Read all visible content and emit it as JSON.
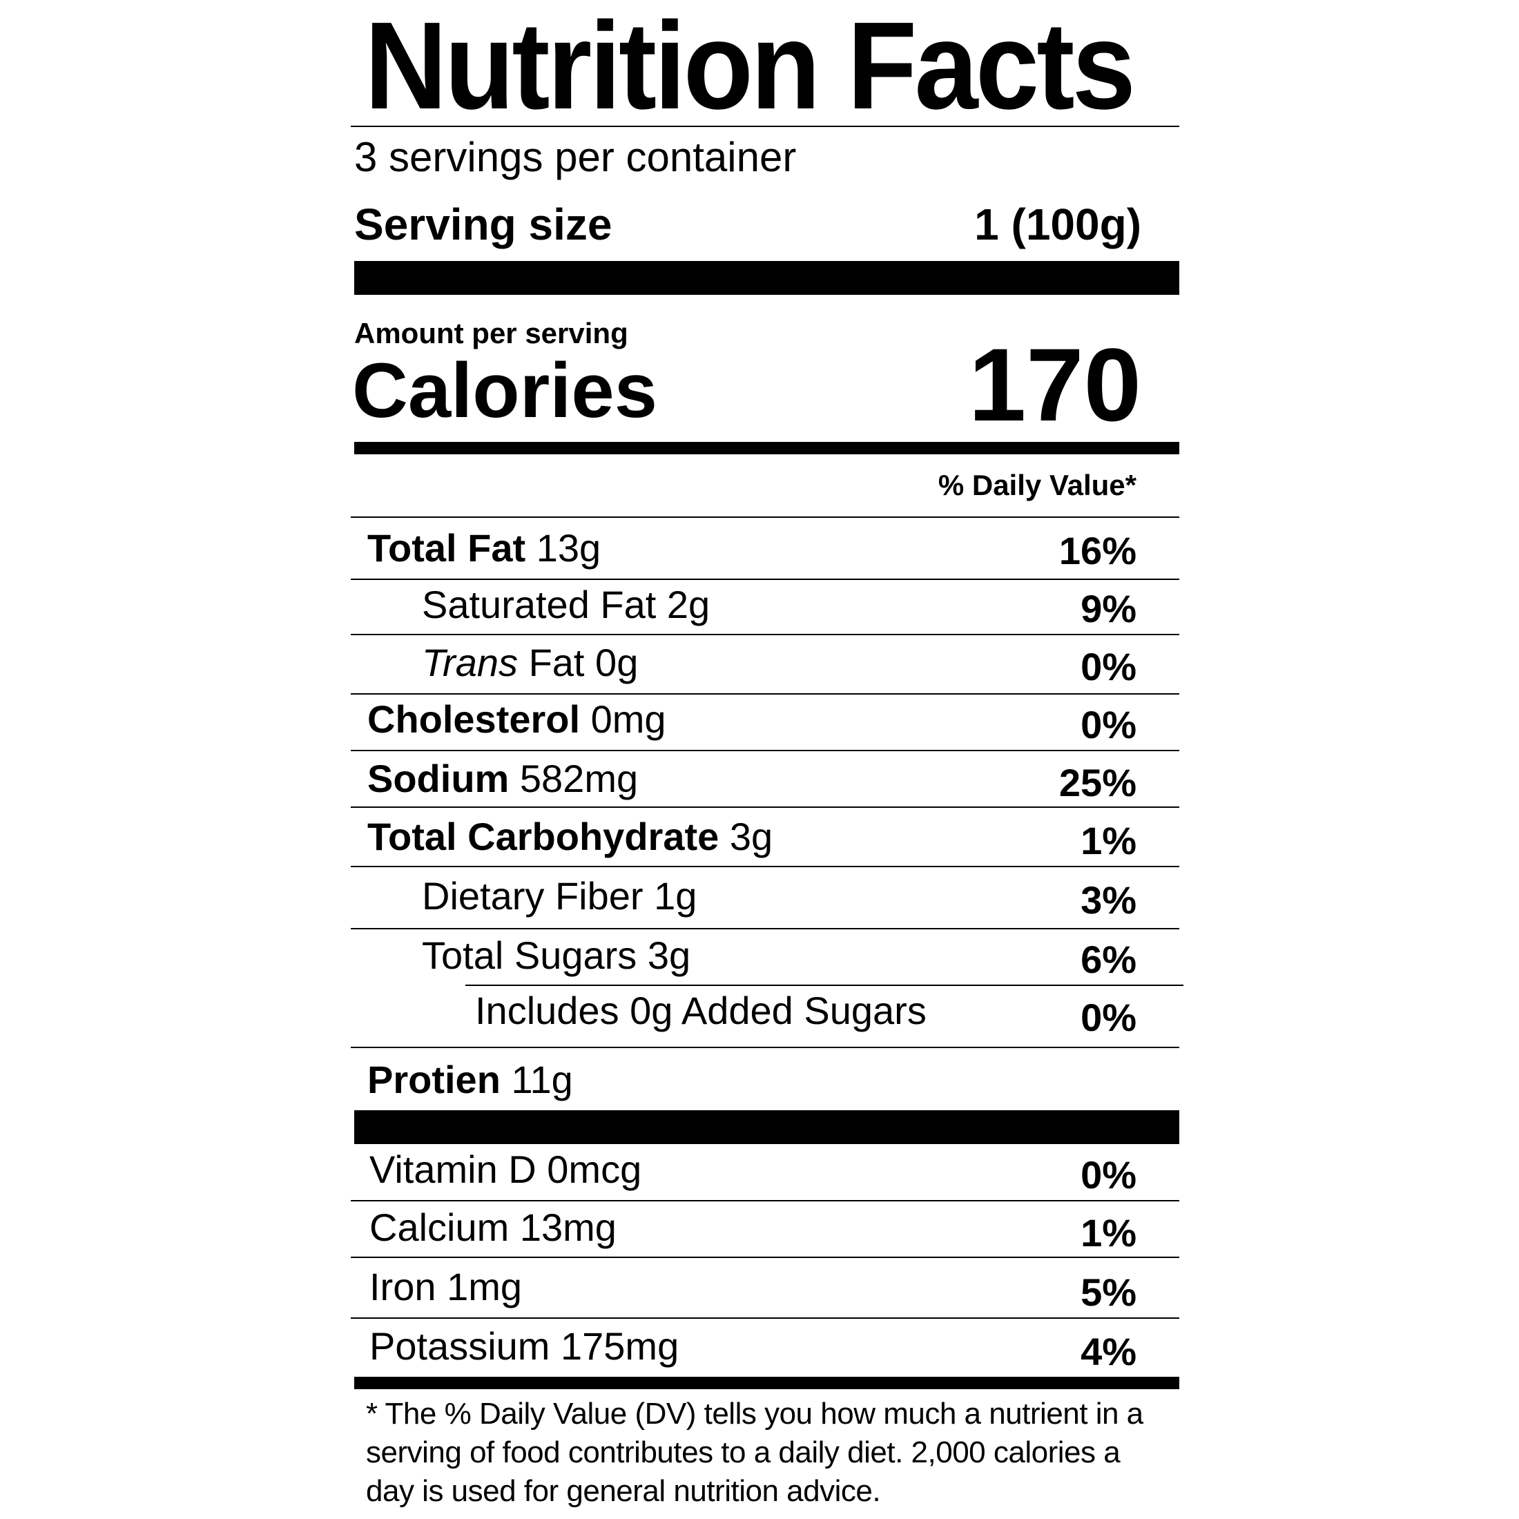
{
  "title": "Nutrition Facts",
  "servings_per_container": "3 servings per container",
  "serving_size": {
    "label": "Serving size",
    "value": "1 (100g)"
  },
  "amount_per_serving": "Amount per serving",
  "calories": {
    "label": "Calories",
    "value": "170"
  },
  "daily_value_header": "% Daily Value*",
  "nutrients": [
    {
      "name": "Total Fat",
      "amount": "13g",
      "dv": "16%"
    },
    {
      "name": "Saturated Fat",
      "amount": "2g",
      "dv": "9%"
    },
    {
      "name": "Trans",
      "name_rest": "Fat",
      "amount": "0g",
      "dv": "0%"
    },
    {
      "name": "Cholesterol",
      "amount": "0mg",
      "dv": "0%"
    },
    {
      "name": "Sodium",
      "amount": "582mg",
      "dv": "25%"
    },
    {
      "name": "Total Carbohydrate",
      "amount": "3g",
      "dv": "1%"
    },
    {
      "name": "Dietary Fiber",
      "amount": "1g",
      "dv": "3%"
    },
    {
      "name": "Total Sugars",
      "amount": "3g",
      "dv": "6%"
    },
    {
      "name": "Includes 0g Added Sugars",
      "dv": "0%"
    },
    {
      "name": "Protien",
      "amount": "11g"
    }
  ],
  "vitamins": [
    {
      "name": "Vitamin D",
      "amount": "0mcg",
      "dv": "0%"
    },
    {
      "name": "Calcium",
      "amount": "13mg",
      "dv": "1%"
    },
    {
      "name": "Iron",
      "amount": "1mg",
      "dv": "5%"
    },
    {
      "name": "Potassium",
      "amount": "175mg",
      "dv": "4%"
    }
  ],
  "footnote": "* The % Daily Value (DV) tells you how much a nutrient in a serving of food contributes to a daily diet. 2,000 calories a day is used for general nutrition advice."
}
